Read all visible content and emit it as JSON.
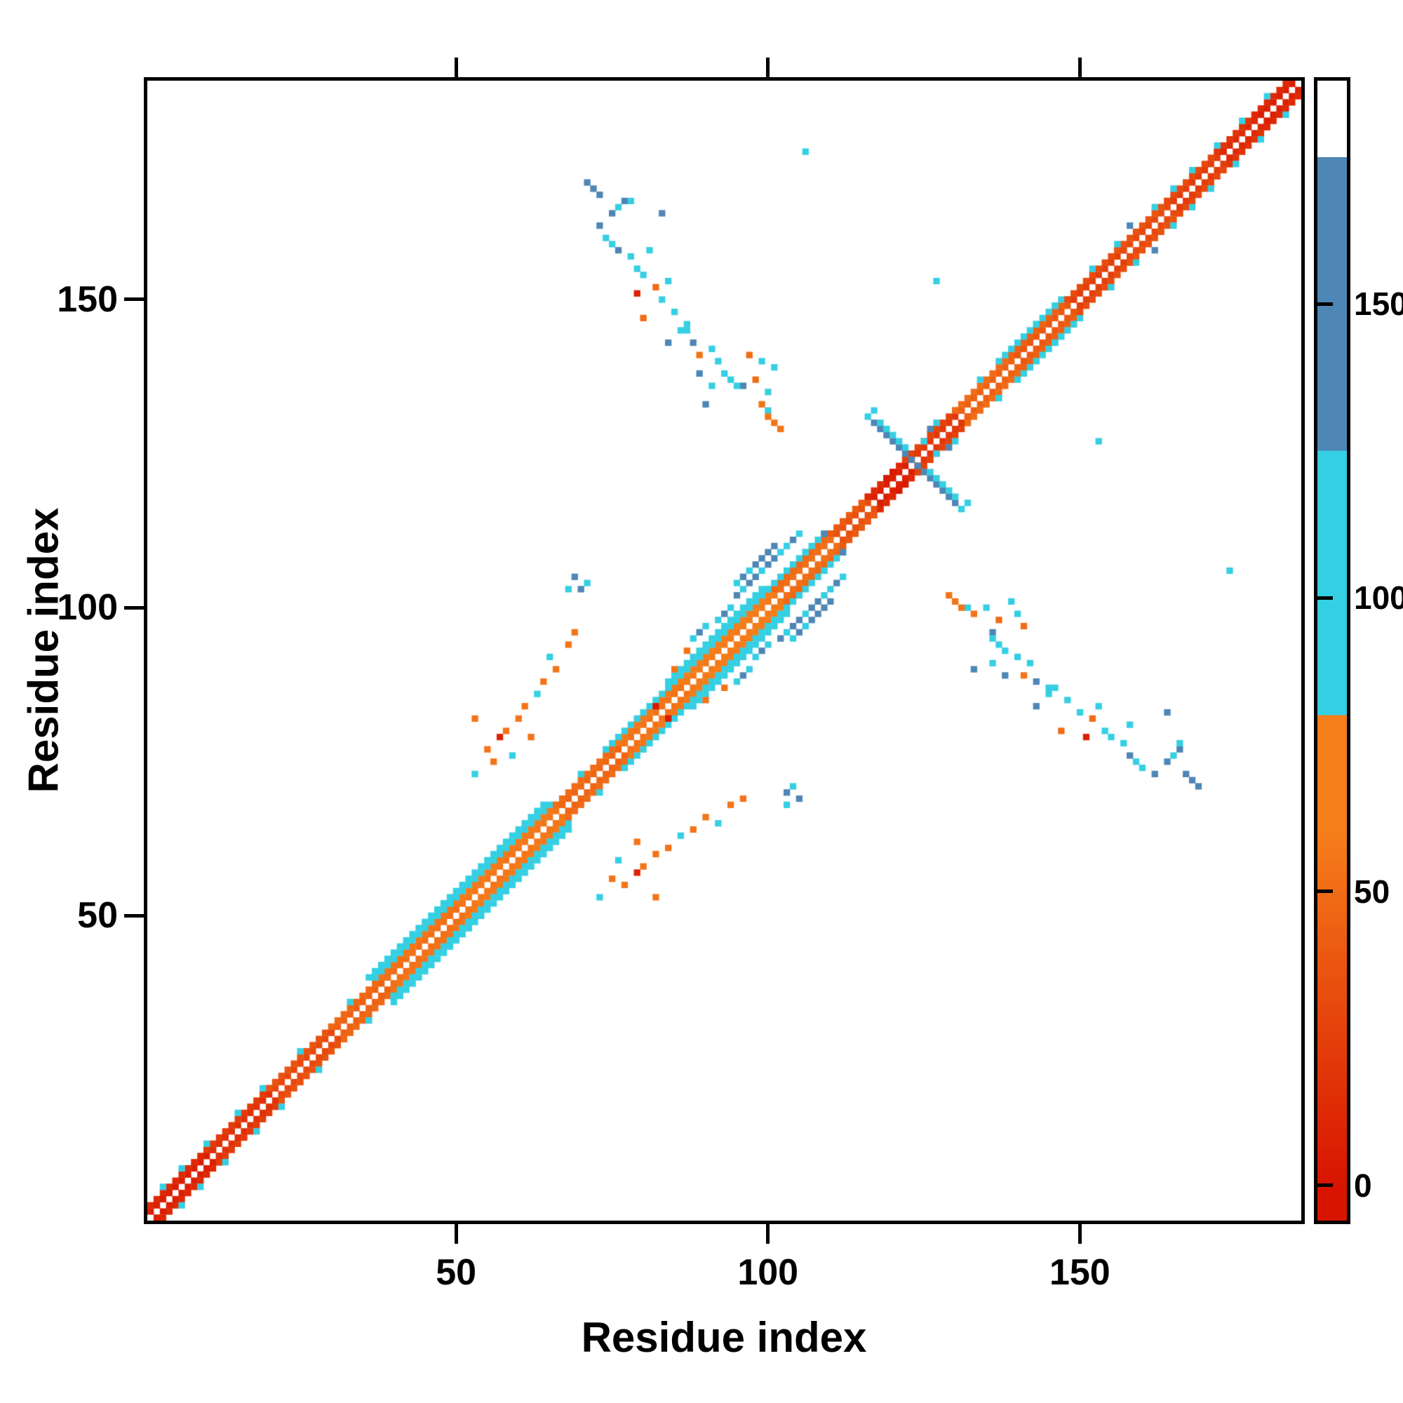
{
  "figure": {
    "xlabel": "Residue index",
    "ylabel": "Residue index",
    "x_ticks": [
      50,
      100,
      150
    ],
    "y_ticks": [
      50,
      100,
      150
    ],
    "background": "#ffffff",
    "frame_color": "#000000"
  },
  "colorbar": {
    "ticks": [
      0,
      50,
      100,
      150
    ],
    "range": [
      -6,
      188
    ],
    "bins": [
      {
        "min": -6,
        "max": 0,
        "from": "#d81400",
        "to": "#d81400"
      },
      {
        "min": 0,
        "max": 60,
        "from": "#d81400",
        "to": "#f57d1a"
      },
      {
        "min": 60,
        "max": 80,
        "from": "#f57d1a",
        "to": "#f57d1a"
      },
      {
        "min": 80,
        "max": 125,
        "from": "#35cfe3",
        "to": "#35cfe3"
      },
      {
        "min": 125,
        "max": 175,
        "from": "#4e86b5",
        "to": "#4e86b5"
      },
      {
        "min": 175,
        "max": 188,
        "from": "#ffffff",
        "to": "#ffffff"
      }
    ]
  },
  "chart_data": {
    "type": "heatmap",
    "title": "",
    "xlabel": "Residue index",
    "ylabel": "Residue index",
    "x_range": [
      1,
      185
    ],
    "y_range": [
      1,
      185
    ],
    "n_residues": 185,
    "symmetric": true,
    "colorbar_ticks": [
      0,
      50,
      100,
      150
    ],
    "diag_segments": [
      [
        2,
        12,
        [
          [
            1,
            6
          ],
          [
            2,
            12
          ]
        ]
      ],
      [
        12,
        22,
        [
          [
            1,
            16
          ],
          [
            2,
            22
          ]
        ]
      ],
      [
        22,
        32,
        [
          [
            1,
            30
          ],
          [
            2,
            36
          ]
        ]
      ],
      [
        32,
        40,
        [
          [
            1,
            44
          ],
          [
            2,
            48
          ]
        ]
      ],
      [
        40,
        52,
        [
          [
            1,
            52
          ],
          [
            2,
            55
          ],
          [
            3,
            90
          ],
          [
            4,
            93
          ]
        ]
      ],
      [
        52,
        68,
        [
          [
            1,
            56
          ],
          [
            2,
            58
          ],
          [
            3,
            90
          ],
          [
            4,
            93
          ]
        ]
      ],
      [
        68,
        78,
        [
          [
            1,
            46
          ],
          [
            2,
            50
          ]
        ]
      ],
      [
        78,
        88,
        [
          [
            1,
            54
          ],
          [
            2,
            57
          ],
          [
            3,
            90
          ]
        ]
      ],
      [
        88,
        103,
        [
          [
            1,
            58
          ],
          [
            2,
            60
          ],
          [
            3,
            92
          ],
          [
            4,
            95
          ]
        ]
      ],
      [
        103,
        112,
        [
          [
            1,
            52
          ],
          [
            2,
            48
          ],
          [
            3,
            90
          ]
        ]
      ],
      [
        112,
        118,
        [
          [
            1,
            34
          ],
          [
            2,
            40
          ]
        ]
      ],
      [
        118,
        124,
        [
          [
            1,
            6
          ],
          [
            2,
            12
          ]
        ]
      ],
      [
        124,
        132,
        [
          [
            1,
            20
          ],
          [
            2,
            26
          ]
        ]
      ],
      [
        132,
        141,
        [
          [
            1,
            44
          ],
          [
            2,
            50
          ]
        ]
      ],
      [
        141,
        150,
        [
          [
            1,
            38
          ],
          [
            2,
            44
          ],
          [
            3,
            90
          ]
        ]
      ],
      [
        150,
        158,
        [
          [
            1,
            24
          ],
          [
            2,
            32
          ]
        ]
      ],
      [
        158,
        166,
        [
          [
            1,
            30
          ],
          [
            2,
            36
          ]
        ]
      ],
      [
        166,
        174,
        [
          [
            1,
            22
          ],
          [
            2,
            30
          ]
        ]
      ],
      [
        174,
        180,
        [
          [
            1,
            12
          ],
          [
            2,
            18
          ]
        ]
      ],
      [
        180,
        185,
        [
          [
            1,
            6
          ],
          [
            2,
            12
          ]
        ]
      ]
    ],
    "points": [
      [
        3,
        6,
        95
      ],
      [
        6,
        9,
        95
      ],
      [
        10,
        13,
        95
      ],
      [
        15,
        18,
        95
      ],
      [
        19,
        22,
        95
      ],
      [
        25,
        28,
        95
      ],
      [
        33,
        36,
        95
      ],
      [
        37,
        40,
        95
      ],
      [
        70,
        73,
        95
      ],
      [
        74,
        77,
        95
      ],
      [
        106,
        109,
        95
      ],
      [
        109,
        112,
        140
      ],
      [
        134,
        137,
        95
      ],
      [
        137,
        140,
        95
      ],
      [
        143,
        146,
        95
      ],
      [
        146,
        149,
        95
      ],
      [
        152,
        155,
        95
      ],
      [
        156,
        159,
        95
      ],
      [
        158,
        162,
        140
      ],
      [
        162,
        165,
        95
      ],
      [
        165,
        168,
        95
      ],
      [
        168,
        171,
        95
      ],
      [
        172,
        175,
        95
      ],
      [
        176,
        179,
        95
      ],
      [
        180,
        183,
        95
      ],
      [
        71,
        169,
        140
      ],
      [
        72,
        168,
        140
      ],
      [
        73,
        167,
        140
      ],
      [
        77,
        166,
        140
      ],
      [
        78,
        166,
        95
      ],
      [
        83,
        164,
        140
      ],
      [
        73,
        162,
        140
      ],
      [
        74,
        160,
        95
      ],
      [
        75,
        159,
        95
      ],
      [
        76,
        158,
        140
      ],
      [
        78,
        157,
        95
      ],
      [
        76,
        165,
        95
      ],
      [
        75,
        164,
        140
      ],
      [
        79,
        155,
        95
      ],
      [
        80,
        154,
        95
      ],
      [
        82,
        152,
        50
      ],
      [
        79,
        151,
        8
      ],
      [
        83,
        150,
        95
      ],
      [
        85,
        148,
        95
      ],
      [
        80,
        147,
        50
      ],
      [
        87,
        146,
        95
      ],
      [
        84,
        143,
        140
      ],
      [
        86,
        145,
        95
      ],
      [
        81,
        158,
        95
      ],
      [
        84,
        153,
        95
      ],
      [
        97,
        141,
        50
      ],
      [
        99,
        140,
        95
      ],
      [
        101,
        139,
        95
      ],
      [
        98,
        137,
        50
      ],
      [
        96,
        136,
        140
      ],
      [
        100,
        135,
        95
      ],
      [
        89,
        138,
        140
      ],
      [
        91,
        136,
        95
      ],
      [
        90,
        133,
        140
      ],
      [
        92,
        140,
        95
      ],
      [
        93,
        138,
        95
      ],
      [
        95,
        136,
        95
      ],
      [
        94,
        137,
        95
      ],
      [
        106,
        174,
        95
      ],
      [
        127,
        153,
        95
      ],
      [
        117,
        130,
        140
      ],
      [
        118,
        129,
        140
      ],
      [
        119,
        128,
        140
      ],
      [
        120,
        127,
        140
      ],
      [
        121,
        126,
        140
      ],
      [
        122,
        125,
        140
      ],
      [
        123,
        124,
        140
      ],
      [
        118,
        130,
        95
      ],
      [
        119,
        129,
        95
      ],
      [
        120,
        128,
        95
      ],
      [
        121,
        127,
        95
      ],
      [
        122,
        126,
        95
      ],
      [
        119,
        121,
        3
      ],
      [
        120,
        122,
        3
      ],
      [
        125,
        127,
        95
      ],
      [
        126,
        129,
        140
      ],
      [
        127,
        130,
        95
      ],
      [
        116,
        131,
        95
      ],
      [
        117,
        132,
        95
      ],
      [
        88,
        95,
        95
      ],
      [
        89,
        96,
        140
      ],
      [
        90,
        97,
        95
      ],
      [
        92,
        98,
        95
      ],
      [
        93,
        99,
        140
      ],
      [
        94,
        100,
        95
      ],
      [
        95,
        102,
        140
      ],
      [
        96,
        103,
        95
      ],
      [
        97,
        104,
        140
      ],
      [
        98,
        105,
        140
      ],
      [
        99,
        106,
        95
      ],
      [
        100,
        107,
        140
      ],
      [
        101,
        108,
        140
      ],
      [
        102,
        109,
        95
      ],
      [
        98,
        107,
        140
      ],
      [
        99,
        108,
        140
      ],
      [
        100,
        109,
        140
      ],
      [
        101,
        110,
        140
      ],
      [
        97,
        106,
        95
      ],
      [
        96,
        105,
        140
      ],
      [
        95,
        104,
        95
      ],
      [
        87,
        93,
        55
      ],
      [
        85,
        90,
        55
      ],
      [
        82,
        84,
        2
      ],
      [
        103,
        110,
        95
      ],
      [
        104,
        111,
        140
      ],
      [
        105,
        112,
        95
      ],
      [
        55,
        77,
        55
      ],
      [
        57,
        79,
        8
      ],
      [
        58,
        80,
        55
      ],
      [
        60,
        82,
        55
      ],
      [
        56,
        75,
        55
      ],
      [
        53,
        73,
        95
      ],
      [
        61,
        84,
        55
      ],
      [
        63,
        86,
        95
      ],
      [
        64,
        88,
        55
      ],
      [
        66,
        90,
        55
      ],
      [
        62,
        79,
        55
      ],
      [
        59,
        76,
        95
      ],
      [
        53,
        82,
        55
      ],
      [
        65,
        92,
        95
      ],
      [
        68,
        94,
        55
      ],
      [
        69,
        96,
        55
      ],
      [
        70,
        103,
        140
      ],
      [
        71,
        104,
        95
      ],
      [
        69,
        105,
        140
      ],
      [
        68,
        103,
        95
      ],
      [
        102,
        129,
        55
      ],
      [
        101,
        130,
        55
      ],
      [
        100,
        132,
        95
      ],
      [
        99,
        133,
        55
      ],
      [
        88,
        143,
        140
      ],
      [
        87,
        145,
        95
      ],
      [
        91,
        142,
        95
      ],
      [
        89,
        141,
        55
      ],
      [
        100,
        131,
        55
      ]
    ]
  }
}
